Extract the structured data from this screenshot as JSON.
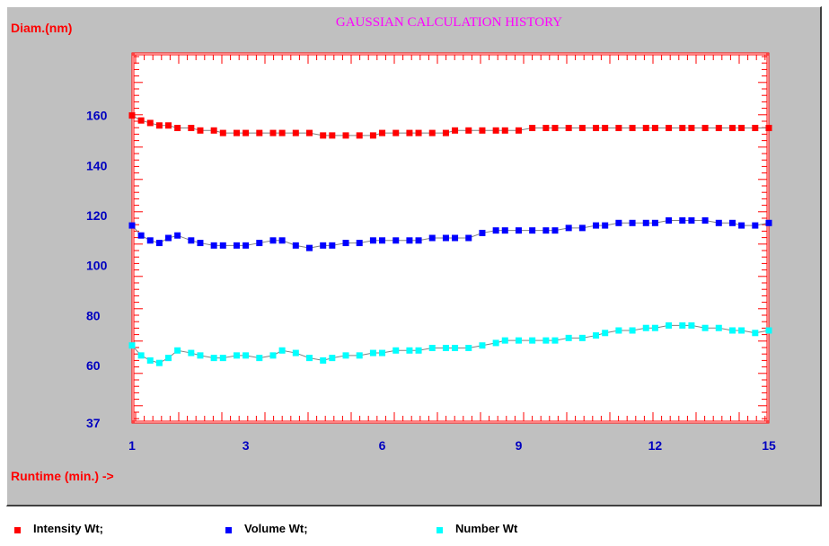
{
  "chart_data": {
    "type": "line",
    "title": "GAUSSIAN CALCULATION HISTORY",
    "ylabel": "Diam.(nm)",
    "xlabel": "Runtime (min.) ->",
    "x_ticks": [
      "1",
      "3",
      "6",
      "9",
      "12",
      "15"
    ],
    "x_tick_values": [
      1,
      3.5,
      6.5,
      9.5,
      12.5,
      15
    ],
    "y_ticks": [
      "37",
      "60",
      "80",
      "100",
      "120",
      "140",
      "160"
    ],
    "y_tick_values": [
      37,
      60,
      80,
      100,
      120,
      140,
      160
    ],
    "xlim": [
      1,
      15
    ],
    "ylim": [
      37,
      185
    ],
    "grid": false,
    "legend_position": "bottom",
    "colors": {
      "panel": "#c0c0c0",
      "plot_bg": "#ffffff",
      "axis_red": "#ff0000",
      "tick_blue": "#0000c0",
      "title": "#ff00ff",
      "connect_line": "#808080"
    },
    "series": [
      {
        "name": "Intensity Wt;",
        "color": "#ff0000",
        "x": [
          1.0,
          1.2,
          1.4,
          1.6,
          1.8,
          2.0,
          2.3,
          2.5,
          2.8,
          3.0,
          3.3,
          3.5,
          3.8,
          4.1,
          4.3,
          4.6,
          4.9,
          5.2,
          5.4,
          5.7,
          6.0,
          6.3,
          6.5,
          6.8,
          7.1,
          7.3,
          7.6,
          7.9,
          8.1,
          8.4,
          8.7,
          9.0,
          9.2,
          9.5,
          9.8,
          10.1,
          10.3,
          10.6,
          10.9,
          11.2,
          11.4,
          11.7,
          12.0,
          12.3,
          12.5,
          12.8,
          13.1,
          13.3,
          13.6,
          13.9,
          14.2,
          14.4,
          14.7,
          15.0
        ],
        "values": [
          160,
          158,
          157,
          156,
          156,
          155,
          155,
          154,
          154,
          153,
          153,
          153,
          153,
          153,
          153,
          153,
          153,
          152,
          152,
          152,
          152,
          152,
          153,
          153,
          153,
          153,
          153,
          153,
          154,
          154,
          154,
          154,
          154,
          154,
          155,
          155,
          155,
          155,
          155,
          155,
          155,
          155,
          155,
          155,
          155,
          155,
          155,
          155,
          155,
          155,
          155,
          155,
          155,
          155
        ]
      },
      {
        "name": "Volume Wt;",
        "color": "#0000ff",
        "x": [
          1.0,
          1.2,
          1.4,
          1.6,
          1.8,
          2.0,
          2.3,
          2.5,
          2.8,
          3.0,
          3.3,
          3.5,
          3.8,
          4.1,
          4.3,
          4.6,
          4.9,
          5.2,
          5.4,
          5.7,
          6.0,
          6.3,
          6.5,
          6.8,
          7.1,
          7.3,
          7.6,
          7.9,
          8.1,
          8.4,
          8.7,
          9.0,
          9.2,
          9.5,
          9.8,
          10.1,
          10.3,
          10.6,
          10.9,
          11.2,
          11.4,
          11.7,
          12.0,
          12.3,
          12.5,
          12.8,
          13.1,
          13.3,
          13.6,
          13.9,
          14.2,
          14.4,
          14.7,
          15.0
        ],
        "values": [
          116,
          112,
          110,
          109,
          111,
          112,
          110,
          109,
          108,
          108,
          108,
          108,
          109,
          110,
          110,
          108,
          107,
          108,
          108,
          109,
          109,
          110,
          110,
          110,
          110,
          110,
          111,
          111,
          111,
          111,
          113,
          114,
          114,
          114,
          114,
          114,
          114,
          115,
          115,
          116,
          116,
          117,
          117,
          117,
          117,
          118,
          118,
          118,
          118,
          117,
          117,
          116,
          116,
          117
        ]
      },
      {
        "name": "Number Wt",
        "color": "#00ffff",
        "x": [
          1.0,
          1.2,
          1.4,
          1.6,
          1.8,
          2.0,
          2.3,
          2.5,
          2.8,
          3.0,
          3.3,
          3.5,
          3.8,
          4.1,
          4.3,
          4.6,
          4.9,
          5.2,
          5.4,
          5.7,
          6.0,
          6.3,
          6.5,
          6.8,
          7.1,
          7.3,
          7.6,
          7.9,
          8.1,
          8.4,
          8.7,
          9.0,
          9.2,
          9.5,
          9.8,
          10.1,
          10.3,
          10.6,
          10.9,
          11.2,
          11.4,
          11.7,
          12.0,
          12.3,
          12.5,
          12.8,
          13.1,
          13.3,
          13.6,
          13.9,
          14.2,
          14.4,
          14.7,
          15.0
        ],
        "values": [
          68,
          64,
          62,
          61,
          63,
          66,
          65,
          64,
          63,
          63,
          64,
          64,
          63,
          64,
          66,
          65,
          63,
          62,
          63,
          64,
          64,
          65,
          65,
          66,
          66,
          66,
          67,
          67,
          67,
          67,
          68,
          69,
          70,
          70,
          70,
          70,
          70,
          71,
          71,
          72,
          73,
          74,
          74,
          75,
          75,
          76,
          76,
          76,
          75,
          75,
          74,
          74,
          73,
          74
        ]
      }
    ]
  }
}
